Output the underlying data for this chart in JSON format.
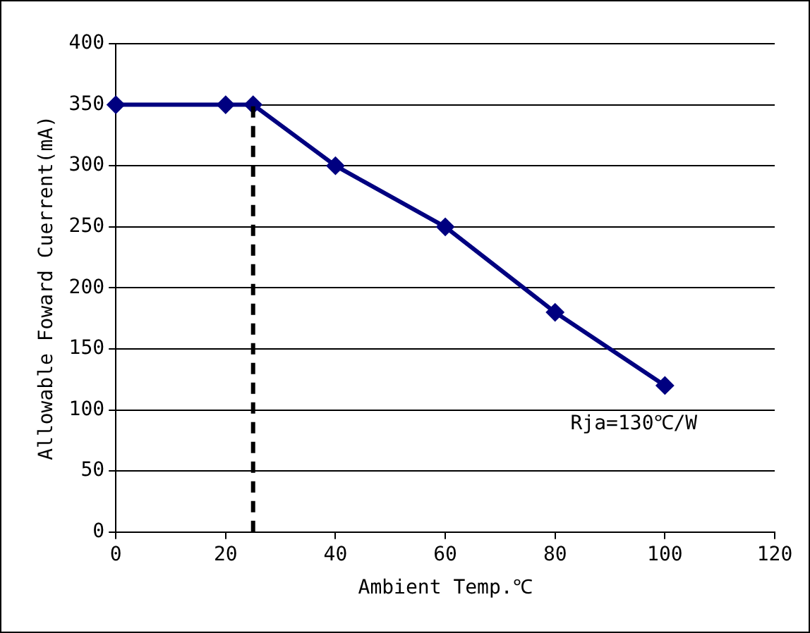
{
  "chart_data": {
    "type": "line",
    "xlabel": "Ambient Temp.℃",
    "ylabel": "Allowable Foward Cuerrent(mA)",
    "x": [
      0,
      20,
      25,
      40,
      60,
      80,
      100
    ],
    "series": [
      {
        "color": "#000080",
        "values": [
          350,
          350,
          350,
          300,
          250,
          180,
          120
        ]
      }
    ],
    "xlim": [
      0,
      120
    ],
    "xticks": [
      0,
      20,
      40,
      60,
      80,
      100,
      120
    ],
    "ylim": [
      0,
      400
    ],
    "yticks": [
      0,
      50,
      100,
      150,
      200,
      250,
      300,
      350,
      400
    ],
    "grid": "y",
    "marker": "diamond",
    "line_style": "solid",
    "legend": false,
    "ref_lines": [
      {
        "axis": "x",
        "value": 25,
        "color": "#000000",
        "line_style": "dashed"
      }
    ],
    "annotations": [
      "Rja=130℃/W"
    ]
  }
}
